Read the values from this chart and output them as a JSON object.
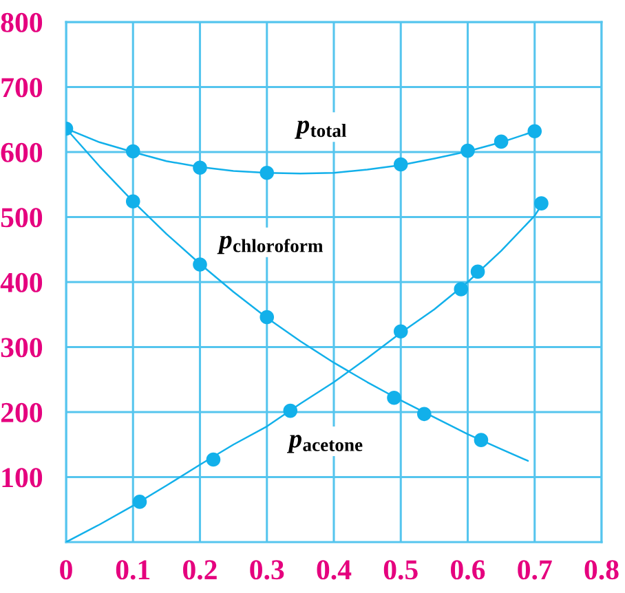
{
  "chart_data": {
    "type": "line",
    "xlim": [
      0,
      0.8
    ],
    "ylim": [
      0,
      800
    ],
    "xticks": [
      0,
      0.1,
      0.2,
      0.3,
      0.4,
      0.5,
      0.6,
      0.7,
      0.8
    ],
    "yticks": [
      100,
      200,
      300,
      400,
      500,
      600,
      700,
      800
    ],
    "grid": true,
    "legend": false,
    "series": [
      {
        "name": "p$_{total}$",
        "color": "#12b0ea",
        "x": [
          0,
          0.05,
          0.1,
          0.15,
          0.2,
          0.25,
          0.3,
          0.35,
          0.4,
          0.45,
          0.5,
          0.55,
          0.6,
          0.65,
          0.7
        ],
        "values": [
          636,
          615,
          600,
          586,
          577,
          571,
          568,
          567,
          568,
          573,
          580,
          590,
          601,
          615,
          632
        ]
      },
      {
        "type": "scatter",
        "color": "#12b0ea",
        "marker": "circle",
        "x": [
          0,
          0.1,
          0.2,
          0.3,
          0.5,
          0.6,
          0.65,
          0.7
        ],
        "values": [
          636,
          601,
          576,
          568,
          581,
          602,
          616,
          632
        ]
      },
      {
        "name": "p$_{chloroform}$",
        "color": "#12b0ea",
        "x": [
          0,
          0.05,
          0.1,
          0.15,
          0.2,
          0.25,
          0.3,
          0.35,
          0.4,
          0.45,
          0.5,
          0.55,
          0.6,
          0.65,
          0.69
        ],
        "values": [
          636,
          578,
          524,
          474,
          428,
          385,
          345,
          309,
          276,
          246,
          218,
          192,
          166,
          143,
          125
        ]
      },
      {
        "type": "scatter",
        "color": "#12b0ea",
        "marker": "circle",
        "x": [
          0.1,
          0.2,
          0.3,
          0.49,
          0.535,
          0.62
        ],
        "values": [
          524,
          427,
          346,
          222,
          197,
          157
        ]
      },
      {
        "name": "p$_{acetone}$",
        "color": "#12b0ea",
        "x": [
          0,
          0.05,
          0.1,
          0.15,
          0.2,
          0.25,
          0.3,
          0.35,
          0.4,
          0.45,
          0.5,
          0.55,
          0.6,
          0.65,
          0.7,
          0.71
        ],
        "values": [
          0,
          27,
          56,
          87,
          119,
          150,
          178,
          213,
          246,
          283,
          322,
          358,
          400,
          448,
          502,
          518
        ]
      },
      {
        "type": "scatter",
        "color": "#12b0ea",
        "marker": "circle",
        "x": [
          0.11,
          0.22,
          0.335,
          0.5,
          0.59,
          0.615,
          0.71
        ],
        "values": [
          62,
          127,
          202,
          324,
          389,
          416,
          521
        ]
      }
    ]
  }
}
